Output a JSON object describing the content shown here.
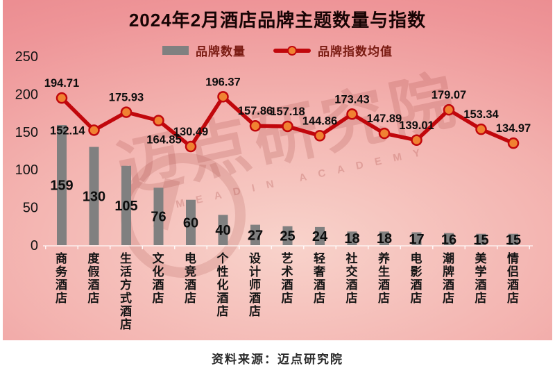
{
  "title": "2024年2月酒店品牌主题数量与指数",
  "legend": {
    "bars": "品牌数量",
    "line": "品牌指数均值"
  },
  "footer": "资料来源：迈点研究院",
  "watermark": {
    "text": "迈点研究院",
    "subtext": "MEADIN ACADEMY"
  },
  "colors": {
    "bar": "#808080",
    "line": "#c1070c",
    "marker_fill": "#f08232",
    "marker_stroke": "#c1070c",
    "background_dark": "#e9858a",
    "background_light": "#f8d3cb",
    "title_text": "#170404",
    "legend_text": "#7a1b12",
    "label_text": "#0d0d0d"
  },
  "chart_data": {
    "type": "bar",
    "title": "2024年2月酒店品牌主题数量与指数",
    "categories": [
      "商务酒店",
      "度假酒店",
      "生活方式酒店",
      "文化酒店",
      "电竞酒店",
      "个性化酒店",
      "设计师酒店",
      "艺术酒店",
      "轻奢酒店",
      "社交酒店",
      "养生酒店",
      "电影酒店",
      "潮牌酒店",
      "美学酒店",
      "情侣酒店"
    ],
    "series": [
      {
        "name": "品牌数量",
        "type": "bar",
        "values": [
          159,
          130,
          105,
          76,
          60,
          40,
          27,
          25,
          24,
          18,
          18,
          17,
          16,
          15,
          15
        ]
      },
      {
        "name": "品牌指数均值",
        "type": "line",
        "values": [
          194.71,
          152.14,
          175.93,
          164.85,
          130.49,
          196.37,
          157.86,
          157.18,
          144.86,
          173.43,
          147.89,
          139.01,
          179.07,
          153.34,
          134.97
        ]
      }
    ],
    "y_axis": {
      "min": 0,
      "max": 250,
      "ticks": [
        0,
        50,
        100,
        150,
        200,
        250
      ]
    },
    "grid": false,
    "legend_position": "top",
    "source": "资料来源：迈点研究院"
  }
}
